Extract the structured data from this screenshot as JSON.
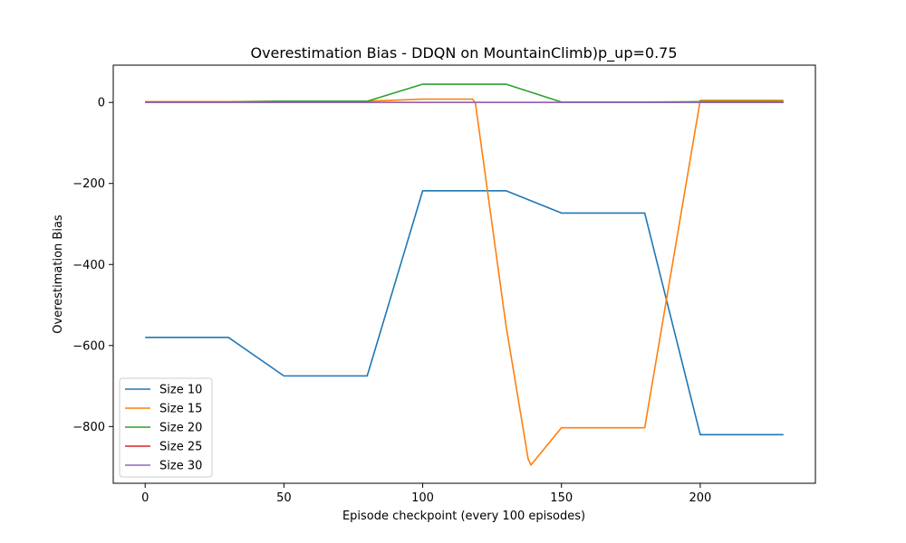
{
  "chart_data": {
    "type": "line",
    "title": "Overestimation Bias - DDQN on MountainClimb)p_up=0.75",
    "xlabel": "Episode checkpoint (every 100 episodes)",
    "ylabel": "Overestimation Bias",
    "xlim": [
      -11.5,
      241.5
    ],
    "ylim": [
      -940,
      92
    ],
    "x_ticks": [
      0,
      50,
      100,
      150,
      200
    ],
    "y_ticks": [
      -800,
      -600,
      -400,
      -200,
      0
    ],
    "x_tick_labels": [
      "0",
      "50",
      "100",
      "150",
      "200"
    ],
    "y_tick_labels": [
      "−800",
      "−600",
      "−400",
      "−200",
      "0"
    ],
    "grid": false,
    "legend_position": "lower-left",
    "series": [
      {
        "name": "Size 10",
        "color": "#1f77b4",
        "x": [
          0,
          30,
          50,
          80,
          100,
          130,
          150,
          180,
          200,
          230
        ],
        "y": [
          -580,
          -580,
          -675,
          -675,
          -218,
          -218,
          -273,
          -273,
          -820,
          -820
        ]
      },
      {
        "name": "Size 15",
        "color": "#ff7f0e",
        "x": [
          0,
          30,
          50,
          80,
          100,
          118,
          119,
          130,
          138,
          139,
          150,
          180,
          200,
          230
        ],
        "y": [
          2,
          2,
          3,
          3,
          8,
          8,
          -2,
          -550,
          -880,
          -895,
          -803,
          -803,
          5,
          5
        ]
      },
      {
        "name": "Size 20",
        "color": "#2ca02c",
        "x": [
          0,
          30,
          50,
          80,
          100,
          130,
          150,
          180,
          200,
          230
        ],
        "y": [
          1,
          1,
          3,
          3,
          45,
          45,
          1,
          1,
          2,
          2
        ]
      },
      {
        "name": "Size 25",
        "color": "#d62728",
        "x": [
          0,
          50,
          100,
          150,
          200,
          230
        ],
        "y": [
          0,
          0,
          0,
          0,
          0,
          0
        ]
      },
      {
        "name": "Size 30",
        "color": "#9467bd",
        "x": [
          0,
          50,
          100,
          150,
          200,
          230
        ],
        "y": [
          0,
          0,
          0,
          0,
          0,
          0
        ]
      }
    ]
  }
}
